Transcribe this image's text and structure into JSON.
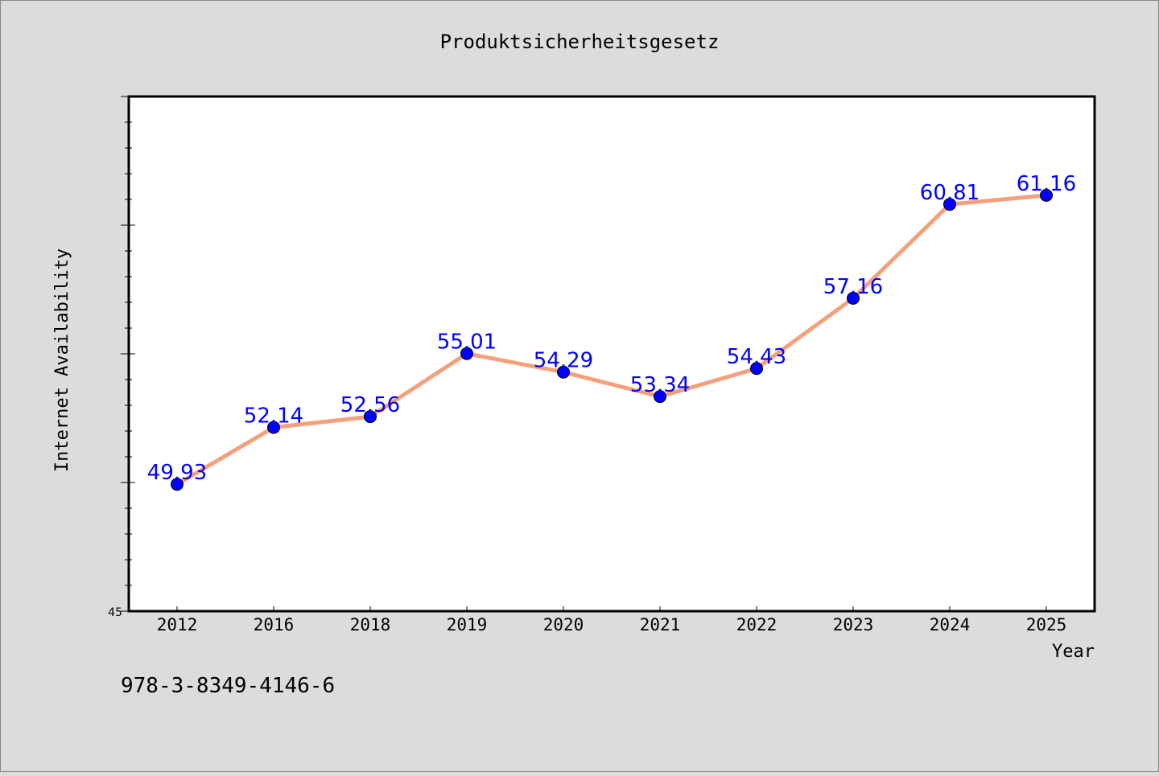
{
  "chart_data": {
    "type": "line",
    "title": "Produktsicherheitsgesetz",
    "xlabel": "Year",
    "ylabel": "Internet Availability",
    "categories": [
      "2012",
      "2016",
      "2018",
      "2019",
      "2020",
      "2021",
      "2022",
      "2023",
      "2024",
      "2025"
    ],
    "series": [
      {
        "values": [
          49.93,
          52.14,
          52.56,
          55.01,
          54.29,
          53.34,
          54.43,
          57.16,
          60.81,
          61.16
        ],
        "data_labels": [
          "49.93",
          "52.14",
          "52.56",
          "55.01",
          "54.29",
          "53.34",
          "54.43",
          "57.16",
          "60.81",
          "61.16"
        ]
      }
    ],
    "ylim": [
      45,
      65
    ],
    "y_tick_labels": [
      "45"
    ],
    "grid": false,
    "legend": "none",
    "colors": {
      "line": "#f4a07c",
      "marker": "#0000ff",
      "data_label": "#0000ff",
      "plot_background": "#ffffff",
      "figure_background": "#dcdcdc"
    }
  },
  "footer": {
    "isbn": "978-3-8349-4146-6"
  }
}
